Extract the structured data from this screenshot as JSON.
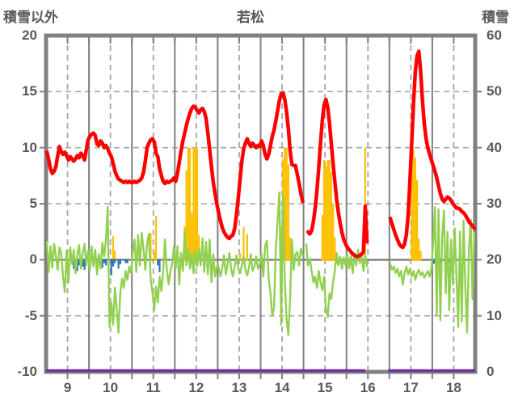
{
  "header": {
    "left_axis_title": "積雪以外",
    "chart_title": "若松",
    "right_axis_title": "積雪"
  },
  "colors": {
    "background": "#FFFFFF",
    "frame": "#808080",
    "grid_solid": "#808080",
    "grid_dashed": "#A6A6A6",
    "text": "#595959",
    "red": "#FF0000",
    "green": "#92D050",
    "orange": "#FFC000",
    "blue": "#2E75B6",
    "purple": "#7030A0"
  },
  "chart_data": {
    "type": "line+bar",
    "title": "若松",
    "subtitle": "",
    "legend": "none",
    "grid": "vertical solid at day boundaries, vertical dashed at day midpoints, horizontal dashed every 5 (left axis), solid at 0",
    "x_axis": {
      "tick_labels": [
        "9",
        "10",
        "11",
        "12",
        "13",
        "14",
        "15",
        "16",
        "17",
        "18"
      ],
      "unit": "day",
      "days": 10,
      "points_per_day": 24
    },
    "left_axis": {
      "title": "積雪以外",
      "min": -10,
      "max": 20,
      "tick_labels": [
        "20",
        "15",
        "10",
        "5",
        "0",
        "-5",
        "-10"
      ]
    },
    "right_axis": {
      "title": "積雪",
      "min": 0,
      "max": 60,
      "tick_labels": [
        "60",
        "50",
        "40",
        "30",
        "20",
        "10",
        "0"
      ]
    },
    "series": [
      {
        "id": "red-line",
        "type": "line",
        "axis": "left",
        "color": "#FF0000",
        "stroke_width": 4.5,
        "values_hourly": [
          9.6,
          8.9,
          8.1,
          7.7,
          7.9,
          8.3,
          9.3,
          10.1,
          9.6,
          9.4,
          9.6,
          9.3,
          8.9,
          9.2,
          9.0,
          8.8,
          9.0,
          9.3,
          9.1,
          9.5,
          9.3,
          8.9,
          9.8,
          10.7,
          11.0,
          11.2,
          11.3,
          11.1,
          10.3,
          10.2,
          10.6,
          10.4,
          10.0,
          10.2,
          9.9,
          9.5,
          9.2,
          8.6,
          7.9,
          7.5,
          7.2,
          7.1,
          7.0,
          6.9,
          7.0,
          6.9,
          7.0,
          6.9,
          6.9,
          7.0,
          6.9,
          7.0,
          7.1,
          7.3,
          7.8,
          8.8,
          10.0,
          10.4,
          10.7,
          10.8,
          10.5,
          9.5,
          9.2,
          8.1,
          7.5,
          7.0,
          6.8,
          7.0,
          6.9,
          7.0,
          7.1,
          7.3,
          7.0,
          7.7,
          8.7,
          9.7,
          10.6,
          11.3,
          12.0,
          12.6,
          13.1,
          13.5,
          13.7,
          13.6,
          13.3,
          13.1,
          13.4,
          13.5,
          13.2,
          12.6,
          11.3,
          9.8,
          8.3,
          6.9,
          5.9,
          5.0,
          4.2,
          3.5,
          2.9,
          2.5,
          2.2,
          2.0,
          1.9,
          2.1,
          2.2,
          2.8,
          4.0,
          5.5,
          7.2,
          8.8,
          9.9,
          10.4,
          10.8,
          10.4,
          10.1,
          10.4,
          10.2,
          10.0,
          10.2,
          10.1,
          10.6,
          10.2,
          9.4,
          9.0,
          9.4,
          10.2,
          11.0,
          11.6,
          12.4,
          13.3,
          14.2,
          14.8,
          14.9,
          14.3,
          13.2,
          11.7,
          9.7,
          8.5,
          8.4,
          8.4,
          7.6,
          6.8,
          5.9,
          5.2,
          null,
          null,
          2.5,
          2.3,
          2.6,
          3.4,
          4.6,
          6.2,
          8.2,
          10.4,
          12.4,
          13.8,
          14.3,
          13.6,
          12.2,
          10.4,
          8.6,
          7.0,
          5.4,
          4.2,
          3.2,
          2.4,
          1.8,
          1.4,
          1.1,
          0.9,
          0.7,
          0.5,
          0.4,
          0.3,
          0.3,
          0.4,
          0.5,
          0.7,
          4.8,
          1.6,
          null,
          null,
          null,
          null,
          null,
          null,
          null,
          null,
          null,
          null,
          null,
          null,
          3.7,
          3.2,
          2.7,
          2.2,
          1.8,
          1.4,
          1.2,
          1.1,
          1.4,
          2.2,
          4.0,
          7.0,
          10.5,
          14.0,
          16.8,
          18.2,
          18.6,
          16.8,
          14.2,
          12.2,
          10.8,
          10.0,
          9.4,
          8.9,
          8.4,
          7.9,
          7.3,
          6.6,
          5.9,
          5.4,
          5.2,
          5.4,
          5.6,
          5.5,
          5.3,
          5.0,
          4.8,
          4.6,
          4.6,
          4.5,
          4.3,
          4.2,
          4.0,
          3.7,
          3.4,
          3.2,
          3.0,
          2.8
        ]
      },
      {
        "id": "green-line",
        "type": "line",
        "axis": "left",
        "color": "#92D050",
        "stroke_width": 2.4,
        "values_hourly": [
          1.6,
          -1.1,
          1.2,
          -0.7,
          1.4,
          0.3,
          -0.9,
          1.1,
          0.6,
          -1.5,
          -2.9,
          0.8,
          -2.0,
          1.1,
          -0.4,
          0.9,
          -1.2,
          0.5,
          1.3,
          -0.8,
          0.6,
          1.4,
          -0.5,
          0.8,
          -1.0,
          1.2,
          -0.6,
          0.9,
          -1.3,
          0.5,
          -0.8,
          1.5,
          0.3,
          1.8,
          4.7,
          -6.0,
          -3.8,
          -5.8,
          -2.5,
          -4.3,
          -6.5,
          -3.0,
          -1.7,
          -2.5,
          -1.0,
          -1.8,
          -0.6,
          -1.2,
          0.7,
          1.8,
          -1.1,
          2.2,
          -0.5,
          2.4,
          1.0,
          -0.9,
          1.5,
          2.3,
          -1.7,
          -2.9,
          -4.5,
          -2.4,
          -3.8,
          -1.5,
          -2.8,
          -1.0,
          1.8,
          -0.8,
          -2.2,
          -1.0,
          -0.4,
          1.2,
          -0.8,
          1.2,
          -2.2,
          0.6,
          -1.0,
          2.5,
          -0.5,
          1.0,
          -0.8,
          0.6,
          -1.2,
          0.8,
          -0.6,
          1.0,
          -0.5,
          1.9,
          -1.1,
          1.6,
          -1.3,
          1.8,
          -2.0,
          0.5,
          -1.5,
          -0.6,
          -0.6,
          -1.5,
          -0.8,
          0.4,
          -1.3,
          -0.4,
          0.6,
          -0.8,
          -1.5,
          -0.6,
          0.4,
          -0.8,
          -1.2,
          -0.5,
          0.3,
          -0.9,
          -1.4,
          -0.7,
          0.5,
          -1.0,
          -0.6,
          0.3,
          -0.8,
          -0.4,
          0.5,
          -1.5,
          1.2,
          1.7,
          -1.7,
          -3.0,
          -5.0,
          -4.3,
          1.0,
          3.5,
          6.0,
          -5.8,
          5.7,
          -2.0,
          -5.3,
          -6.7,
          -3.5,
          1.8,
          -0.9,
          0.5,
          0.7,
          -0.5,
          1.0,
          0.4,
          null,
          1.4,
          -0.5,
          0.1,
          -1.0,
          -2.0,
          -1.5,
          -2.5,
          -1.0,
          -2.0,
          -2.7,
          -1.5,
          -4.4,
          -5.1,
          -3.0,
          -3.5,
          -2.0,
          -1.0,
          0.6,
          -0.5,
          0.3,
          -0.8,
          0.2,
          -0.5,
          0.5,
          -0.8,
          0.3,
          -1.2,
          0.6,
          -0.5,
          0.9,
          -0.3,
          0.5,
          -1.0,
          0.4,
          -0.6,
          null,
          null,
          null,
          null,
          null,
          null,
          null,
          null,
          null,
          null,
          null,
          null,
          -0.4,
          -0.9,
          -0.6,
          -1.2,
          -0.8,
          -1.5,
          -1.0,
          -2.2,
          -1.2,
          -0.6,
          -1.3,
          -0.8,
          -1.5,
          -1.0,
          -1.8,
          -1.2,
          -0.9,
          -1.4,
          -1.1,
          -1.6,
          -1.3,
          -1.0,
          -1.5,
          -0.8,
          1.5,
          4.7,
          -4.9,
          4.5,
          -5.4,
          2.0,
          4.4,
          -3.0,
          2.5,
          -4.5,
          1.8,
          -2.2,
          2.8,
          -1.5,
          -6.0,
          2.5,
          -5.5,
          3.5,
          -2.5,
          -6.5,
          1.0,
          3.6,
          -3.5,
          2.4
        ]
      },
      {
        "id": "orange-bars",
        "type": "bar",
        "axis": "left",
        "color": "#FFC000",
        "points_hour_value": [
          [
            37,
            2.1
          ],
          [
            38,
            0.8
          ],
          [
            58,
            2.4
          ],
          [
            60,
            0.7
          ],
          [
            61,
            3.9
          ],
          [
            77,
            3.0
          ],
          [
            78,
            8.0
          ],
          [
            79,
            10.0
          ],
          [
            80,
            10.0
          ],
          [
            81,
            4.2
          ],
          [
            82,
            10.0
          ],
          [
            83,
            10.0
          ],
          [
            84,
            10.0
          ],
          [
            85,
            2.2
          ],
          [
            108,
            0.6
          ],
          [
            110,
            2.9
          ],
          [
            112,
            2.3
          ],
          [
            131,
            3.0
          ],
          [
            132,
            9.0
          ],
          [
            133,
            10.0
          ],
          [
            134,
            10.0
          ],
          [
            135,
            8.5
          ],
          [
            136,
            2.0
          ],
          [
            154,
            4.0
          ],
          [
            155,
            8.9
          ],
          [
            156,
            8.3
          ],
          [
            157,
            8.9
          ],
          [
            158,
            8.9
          ],
          [
            159,
            7.8
          ],
          [
            160,
            5.0
          ],
          [
            161,
            2.0
          ],
          [
            178,
            10.0
          ],
          [
            204,
            10.0
          ],
          [
            205,
            9.9
          ],
          [
            206,
            9.1
          ],
          [
            207,
            7.1
          ],
          [
            208,
            1.9
          ],
          [
            209,
            0.8
          ]
        ]
      },
      {
        "id": "blue-bars",
        "type": "bar",
        "axis": "left",
        "color": "#2E75B6",
        "points_hour_value": [
          [
            14,
            -0.4
          ],
          [
            15,
            -0.8
          ],
          [
            16,
            -0.5
          ],
          [
            17,
            -1.0
          ],
          [
            18,
            -0.5
          ],
          [
            20,
            -0.6
          ],
          [
            21,
            -0.9
          ],
          [
            30,
            -0.4
          ],
          [
            31,
            -0.7
          ],
          [
            32,
            -0.3
          ],
          [
            33,
            -0.5
          ],
          [
            36,
            -1.4
          ],
          [
            37,
            -0.6
          ],
          [
            38,
            -0.3
          ],
          [
            40,
            -0.8
          ],
          [
            41,
            -0.4
          ],
          [
            44,
            -0.3
          ],
          [
            45,
            -0.3
          ],
          [
            62,
            -0.5
          ],
          [
            63,
            -1.1
          ],
          [
            117,
            -0.3
          ],
          [
            121,
            -0.25
          ],
          [
            162,
            -0.3
          ],
          [
            216,
            -0.35
          ],
          [
            217,
            -0.35
          ],
          [
            218,
            -0.35
          ],
          [
            219,
            -0.35
          ],
          [
            220,
            -0.35
          ],
          [
            223,
            -0.25
          ],
          [
            224,
            -0.25
          ],
          [
            225,
            -0.25
          ],
          [
            226,
            -0.25
          ],
          [
            227,
            -0.25
          ],
          [
            238,
            -0.35
          ],
          [
            239,
            -0.35
          ]
        ]
      },
      {
        "id": "purple-line",
        "type": "line",
        "axis": "right",
        "color": "#7030A0",
        "stroke_width": 3.5,
        "constant_value": 0,
        "segments_day": [
          [
            9.0,
            16.44
          ],
          [
            16.97,
            19.0
          ]
        ]
      }
    ]
  }
}
